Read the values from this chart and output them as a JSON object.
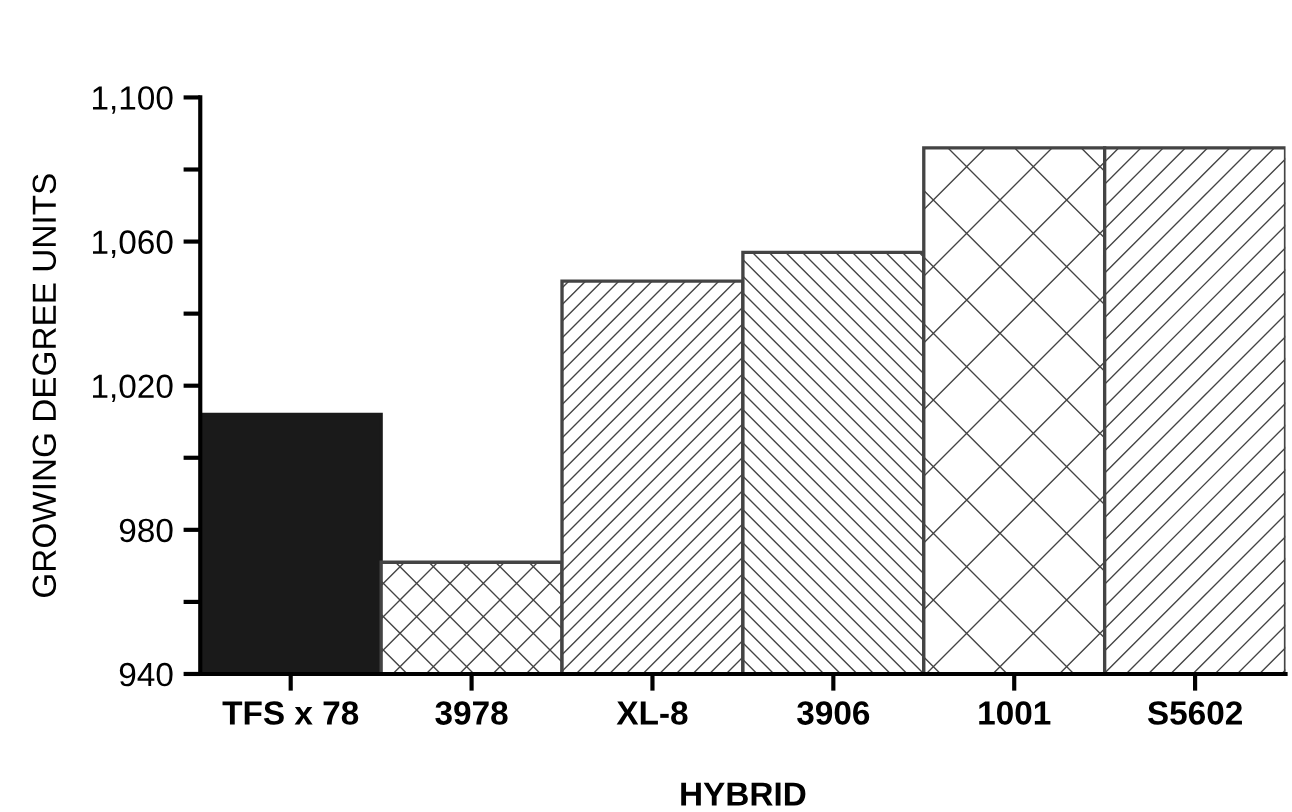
{
  "chart_data": {
    "type": "bar",
    "xlabel": "HYBRID",
    "ylabel": "GROWING DEGREE UNITS",
    "categories": [
      "TFS x 78",
      "3978",
      "XL-8",
      "3906",
      "1001",
      "S5602"
    ],
    "values": [
      1012,
      971,
      1049,
      1057,
      1086,
      1086
    ],
    "colors": [
      "#1a1a1a",
      "#444444",
      "#444444",
      "#444444",
      "#444444",
      "#444444"
    ],
    "ylim": [
      940,
      1100
    ],
    "yticks": [
      940,
      {
        "value": 960,
        "label": null
      },
      980,
      {
        "value": 1000,
        "label": null
      },
      {
        "value": 1020,
        "label": "1,020"
      },
      {
        "value": 1040,
        "label": null
      },
      {
        "value": 1060,
        "label": "1,060"
      },
      {
        "value": 1080,
        "label": null
      },
      {
        "value": 1100,
        "label": "1,100"
      }
    ],
    "grid": false
  }
}
